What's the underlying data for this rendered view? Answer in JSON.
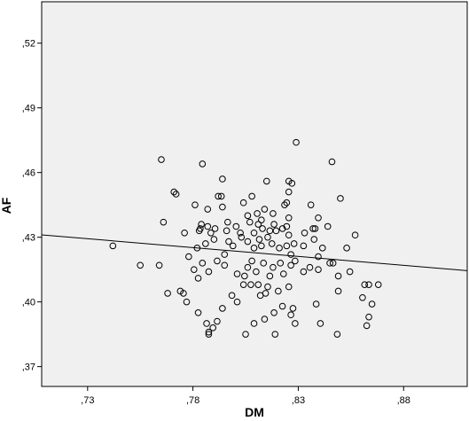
{
  "chart_data": {
    "type": "scatter",
    "xlabel": "DM",
    "ylabel": "AF",
    "xlim": [
      0.7082,
      0.9102
    ],
    "ylim": [
      0.3608,
      0.5392
    ],
    "x_ticks": [
      0.73,
      0.78,
      0.83,
      0.88
    ],
    "x_tick_labels": [
      ",73",
      ",78",
      ",83",
      ",88"
    ],
    "y_ticks": [
      0.37,
      0.4,
      0.43,
      0.46,
      0.49,
      0.52
    ],
    "y_tick_labels": [
      ",37",
      ",40",
      ",43",
      ",46",
      ",49",
      ",52"
    ],
    "grid": false,
    "plot_background": "#f0f0f0",
    "marker": "open-circle",
    "fit_line": {
      "x1": 0.7082,
      "y1": 0.4311,
      "x2": 0.9102,
      "y2": 0.4145
    },
    "points": [
      {
        "x": 0.765,
        "y": 0.466
      },
      {
        "x": 0.7845,
        "y": 0.464
      },
      {
        "x": 0.846,
        "y": 0.465
      },
      {
        "x": 0.829,
        "y": 0.474
      },
      {
        "x": 0.771,
        "y": 0.451
      },
      {
        "x": 0.772,
        "y": 0.45
      },
      {
        "x": 0.792,
        "y": 0.449
      },
      {
        "x": 0.7935,
        "y": 0.449
      },
      {
        "x": 0.794,
        "y": 0.457
      },
      {
        "x": 0.815,
        "y": 0.456
      },
      {
        "x": 0.8255,
        "y": 0.456
      },
      {
        "x": 0.827,
        "y": 0.455
      },
      {
        "x": 0.8255,
        "y": 0.451
      },
      {
        "x": 0.808,
        "y": 0.449
      },
      {
        "x": 0.85,
        "y": 0.448
      },
      {
        "x": 0.766,
        "y": 0.437
      },
      {
        "x": 0.781,
        "y": 0.445
      },
      {
        "x": 0.787,
        "y": 0.443
      },
      {
        "x": 0.794,
        "y": 0.444
      },
      {
        "x": 0.804,
        "y": 0.446
      },
      {
        "x": 0.806,
        "y": 0.44
      },
      {
        "x": 0.8105,
        "y": 0.441
      },
      {
        "x": 0.8125,
        "y": 0.438
      },
      {
        "x": 0.814,
        "y": 0.443
      },
      {
        "x": 0.818,
        "y": 0.441
      },
      {
        "x": 0.8235,
        "y": 0.445
      },
      {
        "x": 0.8245,
        "y": 0.446
      },
      {
        "x": 0.836,
        "y": 0.445
      },
      {
        "x": 0.8395,
        "y": 0.439
      },
      {
        "x": 0.844,
        "y": 0.435
      },
      {
        "x": 0.833,
        "y": 0.432
      },
      {
        "x": 0.776,
        "y": 0.432
      },
      {
        "x": 0.783,
        "y": 0.433
      },
      {
        "x": 0.7835,
        "y": 0.434
      },
      {
        "x": 0.784,
        "y": 0.436
      },
      {
        "x": 0.787,
        "y": 0.435
      },
      {
        "x": 0.7885,
        "y": 0.432
      },
      {
        "x": 0.7905,
        "y": 0.434
      },
      {
        "x": 0.796,
        "y": 0.433
      },
      {
        "x": 0.7965,
        "y": 0.437
      },
      {
        "x": 0.8005,
        "y": 0.435
      },
      {
        "x": 0.8025,
        "y": 0.432
      },
      {
        "x": 0.807,
        "y": 0.437
      },
      {
        "x": 0.811,
        "y": 0.436
      },
      {
        "x": 0.813,
        "y": 0.434
      },
      {
        "x": 0.8185,
        "y": 0.436
      },
      {
        "x": 0.8195,
        "y": 0.433
      },
      {
        "x": 0.8225,
        "y": 0.434
      },
      {
        "x": 0.8245,
        "y": 0.435
      },
      {
        "x": 0.8255,
        "y": 0.431
      },
      {
        "x": 0.837,
        "y": 0.434
      },
      {
        "x": 0.838,
        "y": 0.434
      },
      {
        "x": 0.857,
        "y": 0.431
      },
      {
        "x": 0.8255,
        "y": 0.439
      },
      {
        "x": 0.742,
        "y": 0.426
      },
      {
        "x": 0.778,
        "y": 0.421
      },
      {
        "x": 0.782,
        "y": 0.425
      },
      {
        "x": 0.786,
        "y": 0.427
      },
      {
        "x": 0.79,
        "y": 0.429
      },
      {
        "x": 0.795,
        "y": 0.422
      },
      {
        "x": 0.797,
        "y": 0.428
      },
      {
        "x": 0.799,
        "y": 0.426
      },
      {
        "x": 0.803,
        "y": 0.43
      },
      {
        "x": 0.806,
        "y": 0.428
      },
      {
        "x": 0.809,
        "y": 0.425
      },
      {
        "x": 0.8115,
        "y": 0.429
      },
      {
        "x": 0.8125,
        "y": 0.426
      },
      {
        "x": 0.8155,
        "y": 0.43
      },
      {
        "x": 0.8175,
        "y": 0.427
      },
      {
        "x": 0.821,
        "y": 0.425
      },
      {
        "x": 0.8245,
        "y": 0.426
      },
      {
        "x": 0.8265,
        "y": 0.422
      },
      {
        "x": 0.828,
        "y": 0.427
      },
      {
        "x": 0.8325,
        "y": 0.426
      },
      {
        "x": 0.8375,
        "y": 0.429
      },
      {
        "x": 0.8395,
        "y": 0.421
      },
      {
        "x": 0.8415,
        "y": 0.425
      },
      {
        "x": 0.853,
        "y": 0.425
      },
      {
        "x": 0.809,
        "y": 0.432
      },
      {
        "x": 0.8165,
        "y": 0.433
      },
      {
        "x": 0.755,
        "y": 0.417
      },
      {
        "x": 0.764,
        "y": 0.417
      },
      {
        "x": 0.7805,
        "y": 0.415
      },
      {
        "x": 0.7845,
        "y": 0.418
      },
      {
        "x": 0.7875,
        "y": 0.414
      },
      {
        "x": 0.7825,
        "y": 0.411
      },
      {
        "x": 0.7915,
        "y": 0.419
      },
      {
        "x": 0.795,
        "y": 0.417
      },
      {
        "x": 0.801,
        "y": 0.413
      },
      {
        "x": 0.8045,
        "y": 0.412
      },
      {
        "x": 0.806,
        "y": 0.416
      },
      {
        "x": 0.808,
        "y": 0.419
      },
      {
        "x": 0.81,
        "y": 0.414
      },
      {
        "x": 0.8135,
        "y": 0.418
      },
      {
        "x": 0.8165,
        "y": 0.412
      },
      {
        "x": 0.818,
        "y": 0.416
      },
      {
        "x": 0.8215,
        "y": 0.418
      },
      {
        "x": 0.823,
        "y": 0.413
      },
      {
        "x": 0.8265,
        "y": 0.417
      },
      {
        "x": 0.8285,
        "y": 0.419
      },
      {
        "x": 0.8325,
        "y": 0.414
      },
      {
        "x": 0.8355,
        "y": 0.416
      },
      {
        "x": 0.8395,
        "y": 0.415
      },
      {
        "x": 0.845,
        "y": 0.418
      },
      {
        "x": 0.849,
        "y": 0.412
      },
      {
        "x": 0.8465,
        "y": 0.418
      },
      {
        "x": 0.8545,
        "y": 0.414
      },
      {
        "x": 0.8615,
        "y": 0.408
      },
      {
        "x": 0.868,
        "y": 0.408
      },
      {
        "x": 0.768,
        "y": 0.404
      },
      {
        "x": 0.774,
        "y": 0.405
      },
      {
        "x": 0.7755,
        "y": 0.404
      },
      {
        "x": 0.777,
        "y": 0.4
      },
      {
        "x": 0.7825,
        "y": 0.395
      },
      {
        "x": 0.794,
        "y": 0.397
      },
      {
        "x": 0.7985,
        "y": 0.403
      },
      {
        "x": 0.801,
        "y": 0.4
      },
      {
        "x": 0.804,
        "y": 0.408
      },
      {
        "x": 0.8075,
        "y": 0.408
      },
      {
        "x": 0.812,
        "y": 0.403
      },
      {
        "x": 0.8145,
        "y": 0.404
      },
      {
        "x": 0.8155,
        "y": 0.407
      },
      {
        "x": 0.8205,
        "y": 0.405
      },
      {
        "x": 0.8225,
        "y": 0.398
      },
      {
        "x": 0.8255,
        "y": 0.407
      },
      {
        "x": 0.8275,
        "y": 0.397
      },
      {
        "x": 0.8385,
        "y": 0.399
      },
      {
        "x": 0.849,
        "y": 0.405
      },
      {
        "x": 0.8605,
        "y": 0.402
      },
      {
        "x": 0.8635,
        "y": 0.408
      },
      {
        "x": 0.865,
        "y": 0.399
      },
      {
        "x": 0.811,
        "y": 0.408
      },
      {
        "x": 0.7865,
        "y": 0.39
      },
      {
        "x": 0.7875,
        "y": 0.386
      },
      {
        "x": 0.7895,
        "y": 0.388
      },
      {
        "x": 0.7915,
        "y": 0.391
      },
      {
        "x": 0.805,
        "y": 0.385
      },
      {
        "x": 0.809,
        "y": 0.39
      },
      {
        "x": 0.814,
        "y": 0.392
      },
      {
        "x": 0.819,
        "y": 0.385
      },
      {
        "x": 0.8185,
        "y": 0.395
      },
      {
        "x": 0.8265,
        "y": 0.394
      },
      {
        "x": 0.8285,
        "y": 0.39
      },
      {
        "x": 0.8405,
        "y": 0.39
      },
      {
        "x": 0.8485,
        "y": 0.385
      },
      {
        "x": 0.8625,
        "y": 0.389
      },
      {
        "x": 0.8635,
        "y": 0.393
      },
      {
        "x": 0.7875,
        "y": 0.385
      }
    ]
  }
}
